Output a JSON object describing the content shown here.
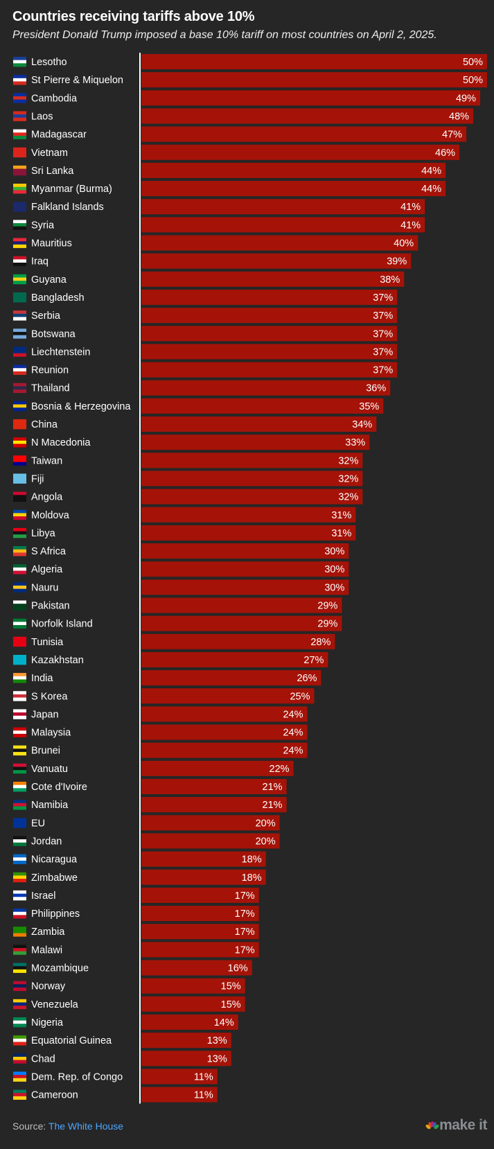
{
  "chart_data": {
    "type": "bar",
    "orientation": "horizontal",
    "title": "Countries receiving tariffs above 10%",
    "subtitle": "President Donald Trump imposed a base 10% tariff on most countries on April 2, 2025.",
    "xlim": [
      0,
      50
    ],
    "grid": false,
    "bar_color": "#a51308",
    "categories": [
      "Lesotho",
      "St Pierre & Miquelon",
      "Cambodia",
      "Laos",
      "Madagascar",
      "Vietnam",
      "Sri Lanka",
      "Myanmar (Burma)",
      "Falkland Islands",
      "Syria",
      "Mauritius",
      "Iraq",
      "Guyana",
      "Bangladesh",
      "Serbia",
      "Botswana",
      "Liechtenstein",
      "Reunion",
      "Thailand",
      "Bosnia & Herzegovina",
      "China",
      "N Macedonia",
      "Taiwan",
      "Fiji",
      "Angola",
      "Moldova",
      "Libya",
      "S Africa",
      "Algeria",
      "Nauru",
      "Pakistan",
      "Norfolk Island",
      "Tunisia",
      "Kazakhstan",
      "India",
      "S Korea",
      "Japan",
      "Malaysia",
      "Brunei",
      "Vanuatu",
      "Cote d'Ivoire",
      "Namibia",
      "EU",
      "Jordan",
      "Nicaragua",
      "Zimbabwe",
      "Israel",
      "Philippines",
      "Zambia",
      "Malawi",
      "Mozambique",
      "Norway",
      "Venezuela",
      "Nigeria",
      "Equatorial Guinea",
      "Chad",
      "Dem. Rep. of Congo",
      "Cameroon"
    ],
    "values": [
      50,
      50,
      49,
      48,
      47,
      46,
      44,
      44,
      41,
      41,
      40,
      39,
      38,
      37,
      37,
      37,
      37,
      37,
      36,
      35,
      34,
      33,
      32,
      32,
      32,
      31,
      31,
      30,
      30,
      30,
      29,
      29,
      28,
      27,
      26,
      25,
      24,
      24,
      24,
      22,
      21,
      21,
      20,
      20,
      18,
      18,
      17,
      17,
      17,
      17,
      16,
      15,
      15,
      14,
      13,
      13,
      11,
      11
    ],
    "data_labels": [
      "50%",
      "50%",
      "49%",
      "48%",
      "47%",
      "46%",
      "44%",
      "44%",
      "41%",
      "41%",
      "40%",
      "39%",
      "38%",
      "37%",
      "37%",
      "37%",
      "37%",
      "37%",
      "36%",
      "35%",
      "34%",
      "33%",
      "32%",
      "32%",
      "32%",
      "31%",
      "31%",
      "30%",
      "30%",
      "30%",
      "29%",
      "29%",
      "28%",
      "27%",
      "26%",
      "25%",
      "24%",
      "24%",
      "24%",
      "22%",
      "21%",
      "21%",
      "20%",
      "20%",
      "18%",
      "18%",
      "17%",
      "17%",
      "17%",
      "17%",
      "16%",
      "15%",
      "15%",
      "14%",
      "13%",
      "13%",
      "11%",
      "11%"
    ]
  },
  "footer": {
    "source_label": "Source: ",
    "source_name": "The White House",
    "brand": "make it"
  }
}
